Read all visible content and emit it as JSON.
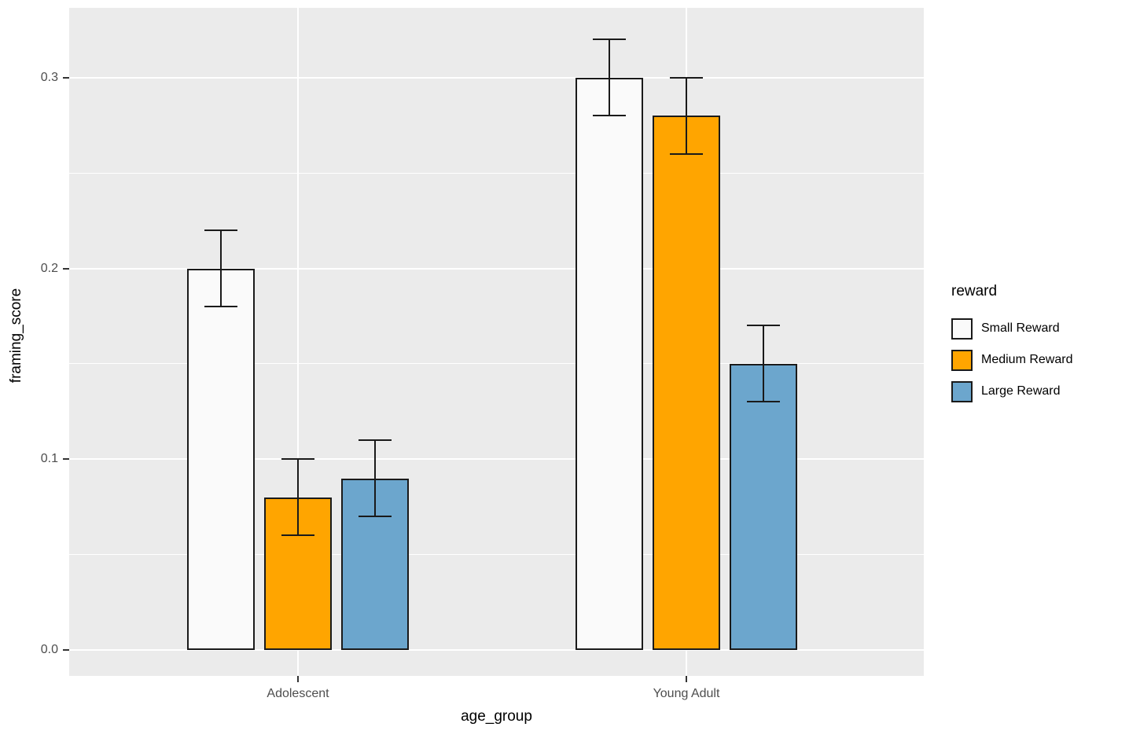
{
  "chart_data": {
    "type": "bar",
    "title": "",
    "xlabel": "age_group",
    "ylabel": "framing_score",
    "categories": [
      "Adolescent",
      "Young Adult"
    ],
    "series": [
      {
        "name": "Small Reward",
        "color": "#FAFAFA",
        "values": [
          0.2,
          0.3
        ],
        "errors": [
          0.02,
          0.02
        ]
      },
      {
        "name": "Medium Reward",
        "color": "#FFA500",
        "values": [
          0.08,
          0.28
        ],
        "errors": [
          0.02,
          0.02
        ]
      },
      {
        "name": "Large Reward",
        "color": "#6CA6CD",
        "values": [
          0.09,
          0.15
        ],
        "errors": [
          0.02,
          0.02
        ]
      }
    ],
    "ytick_labels": [
      "0.0",
      "0.1",
      "0.2",
      "0.3"
    ],
    "ytick_values": [
      0.0,
      0.1,
      0.2,
      0.3
    ],
    "yminor_values": [
      0.05,
      0.15,
      0.25
    ],
    "ylim": [
      -0.014,
      0.336
    ],
    "grid": true,
    "legend": {
      "title": "reward",
      "position": "right"
    },
    "colors": {
      "panel_background": "#EBEBEB",
      "gridline": "#FFFFFF",
      "bar_border": "#1A1A1A",
      "errorbar": "#1A1A1A",
      "tick_label": "#4D4D4D",
      "axis_title": "#000000"
    }
  }
}
